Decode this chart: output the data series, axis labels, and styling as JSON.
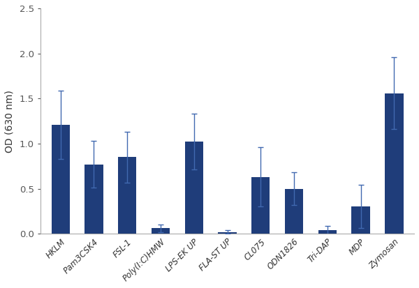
{
  "categories": [
    "HKLM",
    "Pam3CSK4",
    "FSL-1",
    "Poly(I:C)HMW",
    "LPS-EK UP",
    "FLA-ST UP",
    "CL075",
    "ODN1826",
    "Tri-DAP",
    "MDP",
    "Zymosan"
  ],
  "values": [
    1.21,
    0.77,
    0.85,
    0.06,
    1.02,
    0.02,
    0.63,
    0.5,
    0.04,
    0.3,
    1.56
  ],
  "errors": [
    0.38,
    0.26,
    0.28,
    0.04,
    0.31,
    0.02,
    0.33,
    0.18,
    0.05,
    0.24,
    0.4
  ],
  "bar_color": "#1f3d7a",
  "error_color": "#4169b0",
  "spine_color": "#aaaaaa",
  "ylabel": "OD (630 nm)",
  "ylim": [
    0,
    2.5
  ],
  "yticks": [
    0.0,
    0.5,
    1.0,
    1.5,
    2.0,
    2.5
  ],
  "background_color": "#ffffff",
  "figsize": [
    6.0,
    4.13
  ],
  "dpi": 100,
  "bar_width": 0.55,
  "ylabel_fontsize": 10,
  "xtick_fontsize": 8.5,
  "ytick_fontsize": 9.5
}
